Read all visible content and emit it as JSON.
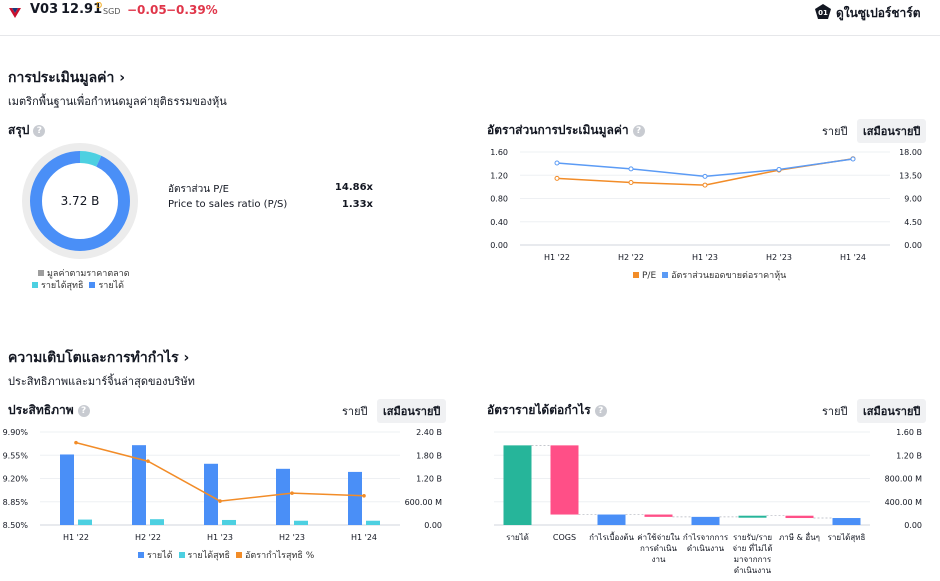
{
  "header": {
    "ticker": "V03",
    "price": "12.91",
    "price_flag": "D",
    "currency": "SGD",
    "change": "−0.05",
    "change_pct": "−0.39%",
    "supercharts_label": "ดูในซูเปอร์ชาร์ต",
    "supercharts_badge": "01"
  },
  "valuation": {
    "title": "การประเมินมูลค่า ›",
    "subtitle": "เมตริกพื้นฐานเพื่อกำหนดมูลค่ายุติธรรมของหุ้น",
    "summary": {
      "title": "สรุป",
      "donut_center": "3.72 B",
      "donut": {
        "market_cap_B": 3.72,
        "net_income_share": 0.07,
        "revenue_share": 0.93
      },
      "rows": [
        {
          "label": "อัตราส่วน P/E",
          "value": "14.86x"
        },
        {
          "label": "Price to sales ratio (P/S)",
          "value": "1.33x"
        }
      ],
      "legend": [
        {
          "label": "มูลค่าตามราคาตลาด",
          "color": "#9e9e9e"
        },
        {
          "label": "รายได้สุทธิ",
          "color": "#4dd0e1"
        },
        {
          "label": "รายได้",
          "color": "#4a8ff7"
        }
      ]
    },
    "ratios": {
      "title": "อัตราส่วนการประเมินมูลค่า",
      "tabs": [
        "รายปี",
        "เสมือนรายปี"
      ],
      "legend": [
        {
          "label": "P/E",
          "color": "#f28c28"
        },
        {
          "label": "อัตราส่วนยอดขายต่อราคาหุ้น",
          "color": "#5b9bf5"
        }
      ]
    }
  },
  "growth": {
    "title": "ความเติบโตและการทำกำไร ›",
    "subtitle": "ประสิทธิภาพและมาร์จิ้นล่าสุดของบริษัท",
    "efficiency": {
      "title": "ประสิทธิภาพ",
      "tabs": [
        "รายปี",
        "เสมือนรายปี"
      ],
      "legend": [
        {
          "label": "รายได้",
          "color": "#4a8ff7"
        },
        {
          "label": "รายได้สุทธิ",
          "color": "#4dd0e1"
        },
        {
          "label": "อัตรากำไรสุทธิ %",
          "color": "#f28c28"
        }
      ]
    },
    "waterfall": {
      "title": "อัตรารายได้ต่อกำไร",
      "tabs": [
        "รายปี",
        "เสมือนรายปี"
      ]
    }
  },
  "chart_data": [
    {
      "type": "line",
      "title": "อัตราส่วนการประเมินมูลค่า",
      "categories": [
        "H1 '22",
        "H2 '22",
        "H1 '23",
        "H2 '23",
        "H1 '24"
      ],
      "y_left_ticks": [
        "1.60",
        "1.20",
        "0.80",
        "0.40",
        "0.00"
      ],
      "y_right_ticks": [
        "18.00",
        "13.50",
        "9.00",
        "4.50",
        "0.00"
      ],
      "ylim_left": [
        0,
        1.6
      ],
      "ylim_right": [
        0,
        18
      ],
      "series": [
        {
          "name": "P/E",
          "axis": "right",
          "color": "#f28c28",
          "values": [
            12.9,
            12.1,
            11.6,
            14.5,
            16.7
          ]
        },
        {
          "name": "อัตราส่วนยอดขายต่อราคาหุ้น",
          "axis": "left",
          "color": "#5b9bf5",
          "values": [
            1.41,
            1.31,
            1.18,
            1.3,
            1.48
          ]
        }
      ]
    },
    {
      "type": "bar",
      "title": "ประสิทธิภาพ",
      "categories": [
        "H1 '22",
        "H2 '22",
        "H1 '23",
        "H2 '23",
        "H1 '24"
      ],
      "y_left_ticks": [
        "9.90%",
        "9.55%",
        "9.20%",
        "8.85%",
        "8.50%"
      ],
      "y_right_ticks": [
        "2.40 B",
        "1.80 B",
        "1.20 B",
        "600.00 M",
        "0.00"
      ],
      "ylim_left": [
        8.5,
        9.9
      ],
      "ylim_right": [
        0,
        2.4
      ],
      "series": [
        {
          "name": "รายได้",
          "axis": "right",
          "color": "#4a8ff7",
          "values": [
            1.82,
            2.06,
            1.58,
            1.45,
            1.37
          ]
        },
        {
          "name": "รายได้สุทธิ",
          "axis": "right",
          "color": "#4dd0e1",
          "values": [
            0.14,
            0.15,
            0.13,
            0.11,
            0.11
          ]
        },
        {
          "name": "อัตรากำไรสุทธิ %",
          "axis": "left",
          "color": "#f28c28",
          "type": "line",
          "values": [
            9.74,
            9.46,
            8.86,
            8.98,
            8.94
          ]
        }
      ]
    },
    {
      "type": "bar",
      "title": "อัตรารายได้ต่อกำไร",
      "categories": [
        "รายได้",
        "COGS",
        "กำไรเบื้องต้น",
        "ค่าใช้จ่ายในการดำเนินงาน",
        "กำไรจากการดำเนินงาน",
        "รายรับ/รายจ่าย ที่ไม่ได้มาจากการดำเนินงาน",
        "ภาษี & อื่นๆ",
        "รายได้สุทธิ"
      ],
      "y_right_ticks": [
        "1.60 B",
        "1.20 B",
        "800.00 M",
        "400.00 M",
        "0.00"
      ],
      "ylim": [
        0,
        1.6
      ],
      "bars": [
        {
          "start": 0,
          "end": 1.37,
          "color": "#26b59a"
        },
        {
          "start": 1.37,
          "end": 0.18,
          "color": "#ff4f87"
        },
        {
          "start": 0,
          "end": 0.18,
          "color": "#4a8ff7"
        },
        {
          "start": 0.18,
          "end": 0.14,
          "color": "#ff4f87"
        },
        {
          "start": 0,
          "end": 0.14,
          "color": "#4a8ff7"
        },
        {
          "start": 0.14,
          "end": 0.16,
          "color": "#26b59a"
        },
        {
          "start": 0.16,
          "end": 0.12,
          "color": "#ff4f87"
        },
        {
          "start": 0,
          "end": 0.12,
          "color": "#4a8ff7"
        }
      ]
    }
  ]
}
